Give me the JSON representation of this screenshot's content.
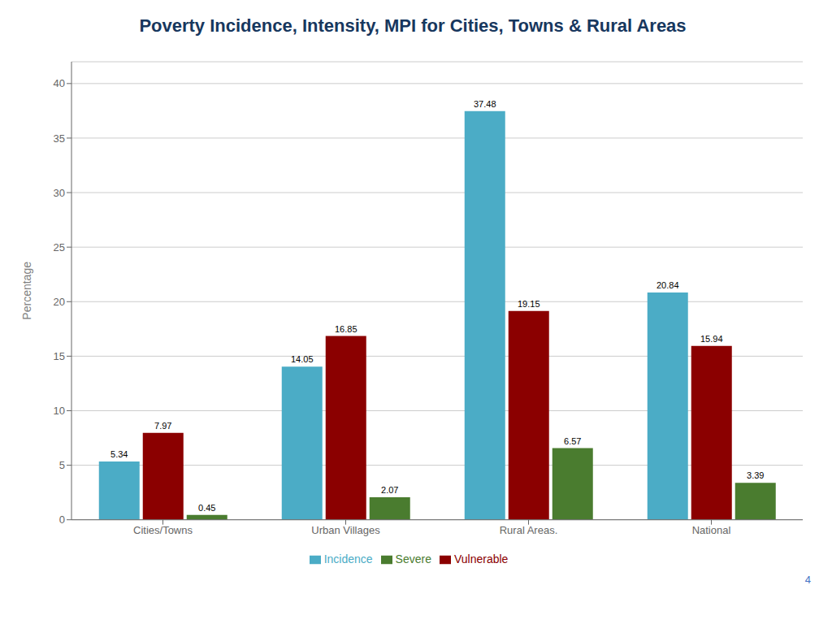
{
  "chart_data": {
    "type": "bar",
    "title": "Poverty Incidence, Intensity, MPI for Cities, Towns & Rural Areas",
    "categories": [
      "Cities/Towns",
      "Urban Villages",
      "Rural Areas.",
      "National"
    ],
    "series": [
      {
        "name": "Incidence",
        "color": "#4BACC6",
        "values": [
          5.34,
          14.05,
          37.48,
          20.84
        ]
      },
      {
        "name": "Vulnerable",
        "color": "#8B0000",
        "values": [
          7.97,
          16.85,
          19.15,
          15.94
        ]
      },
      {
        "name": "Severe",
        "color": "#4A7C2F",
        "values": [
          0.45,
          2.07,
          6.57,
          3.39
        ]
      }
    ],
    "ylabel": "Percentage",
    "ylim": [
      0,
      42
    ],
    "yticks": [
      0,
      5,
      10,
      15,
      20,
      25,
      30,
      35,
      40
    ],
    "grid": true,
    "legend": "bottom",
    "data_labels": true,
    "annotations": [
      "4"
    ]
  }
}
